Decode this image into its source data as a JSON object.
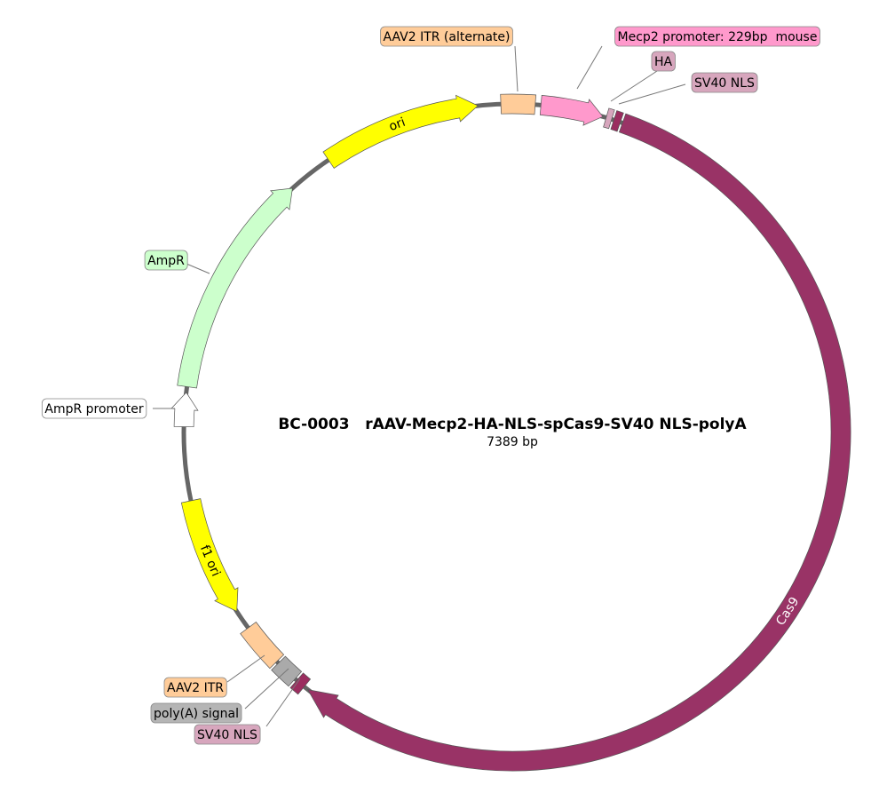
{
  "title": "BC-0003   rAAV-Mecp2-HA-NLS-spCas9-SV40 NLS-polyA",
  "length": "7389 bp",
  "features": [
    {
      "label": "AAV2 ITR (alternate)"
    },
    {
      "label": "Mecp2 promoter: 229bp  mouse"
    },
    {
      "label": "HA"
    },
    {
      "label": "SV40 NLS"
    },
    {
      "label": "Cas9"
    },
    {
      "label": "SV40 NLS"
    },
    {
      "label": "poly(A) signal"
    },
    {
      "label": "AAV2 ITR"
    },
    {
      "label": "f1 ori"
    },
    {
      "label": "AmpR promoter"
    },
    {
      "label": "AmpR"
    },
    {
      "label": "ori"
    }
  ]
}
